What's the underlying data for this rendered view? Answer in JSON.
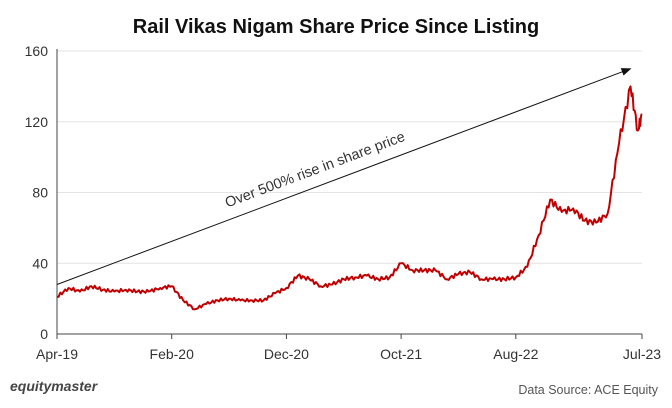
{
  "chart_data": {
    "type": "line",
    "title": "Rail Vikas Nigam Share Price Since Listing",
    "xlabel": "",
    "ylabel": "",
    "ylim": [
      0,
      160
    ],
    "yticks": [
      0,
      40,
      80,
      120,
      160
    ],
    "xlim": [
      "2019-04",
      "2023-07"
    ],
    "xticks": [
      "Apr-19",
      "Feb-20",
      "Dec-20",
      "Oct-21",
      "Aug-22",
      "Jul-23"
    ],
    "grid": "horizontal",
    "series": [
      {
        "color": "#c00000",
        "points": [
          [
            "2019-04",
            21
          ],
          [
            "2019-05",
            26
          ],
          [
            "2019-06",
            24
          ],
          [
            "2019-07",
            27
          ],
          [
            "2019-08",
            25
          ],
          [
            "2019-09",
            24
          ],
          [
            "2019-10",
            25
          ],
          [
            "2019-11",
            24
          ],
          [
            "2019-12",
            24
          ],
          [
            "2020-01",
            26
          ],
          [
            "2020-02",
            27
          ],
          [
            "2020-03",
            19
          ],
          [
            "2020-04",
            14
          ],
          [
            "2020-05",
            17
          ],
          [
            "2020-06",
            19
          ],
          [
            "2020-07",
            20
          ],
          [
            "2020-08",
            19
          ],
          [
            "2020-09",
            19
          ],
          [
            "2020-10",
            19
          ],
          [
            "2020-11",
            23
          ],
          [
            "2020-12",
            26
          ],
          [
            "2021-01",
            33
          ],
          [
            "2021-02",
            31
          ],
          [
            "2021-03",
            27
          ],
          [
            "2021-04",
            28
          ],
          [
            "2021-05",
            31
          ],
          [
            "2021-06",
            32
          ],
          [
            "2021-07",
            33
          ],
          [
            "2021-08",
            31
          ],
          [
            "2021-09",
            32
          ],
          [
            "2021-10",
            40
          ],
          [
            "2021-11",
            36
          ],
          [
            "2021-12",
            36
          ],
          [
            "2022-01",
            36
          ],
          [
            "2022-02",
            31
          ],
          [
            "2022-03",
            34
          ],
          [
            "2022-04",
            35
          ],
          [
            "2022-05",
            31
          ],
          [
            "2022-06",
            31
          ],
          [
            "2022-07",
            31
          ],
          [
            "2022-08",
            32
          ],
          [
            "2022-09",
            38
          ],
          [
            "2022-10",
            56
          ],
          [
            "2022-11",
            76
          ],
          [
            "2022-12",
            69
          ],
          [
            "2023-01",
            71
          ],
          [
            "2023-02",
            64
          ],
          [
            "2023-03",
            63
          ],
          [
            "2023-04",
            68
          ],
          [
            "2023-05",
            108
          ],
          [
            "2023-06",
            140
          ],
          [
            "2023-06-20",
            115
          ],
          [
            "2023-07",
            124
          ]
        ]
      }
    ],
    "annotations": [
      {
        "text": "Over 500% rise in share price",
        "from": [
          "2019-04",
          28
        ],
        "to": [
          "2023-06",
          150
        ]
      }
    ]
  },
  "footer": {
    "brand": "equitymaster",
    "source": "Data Source: ACE Equity"
  }
}
